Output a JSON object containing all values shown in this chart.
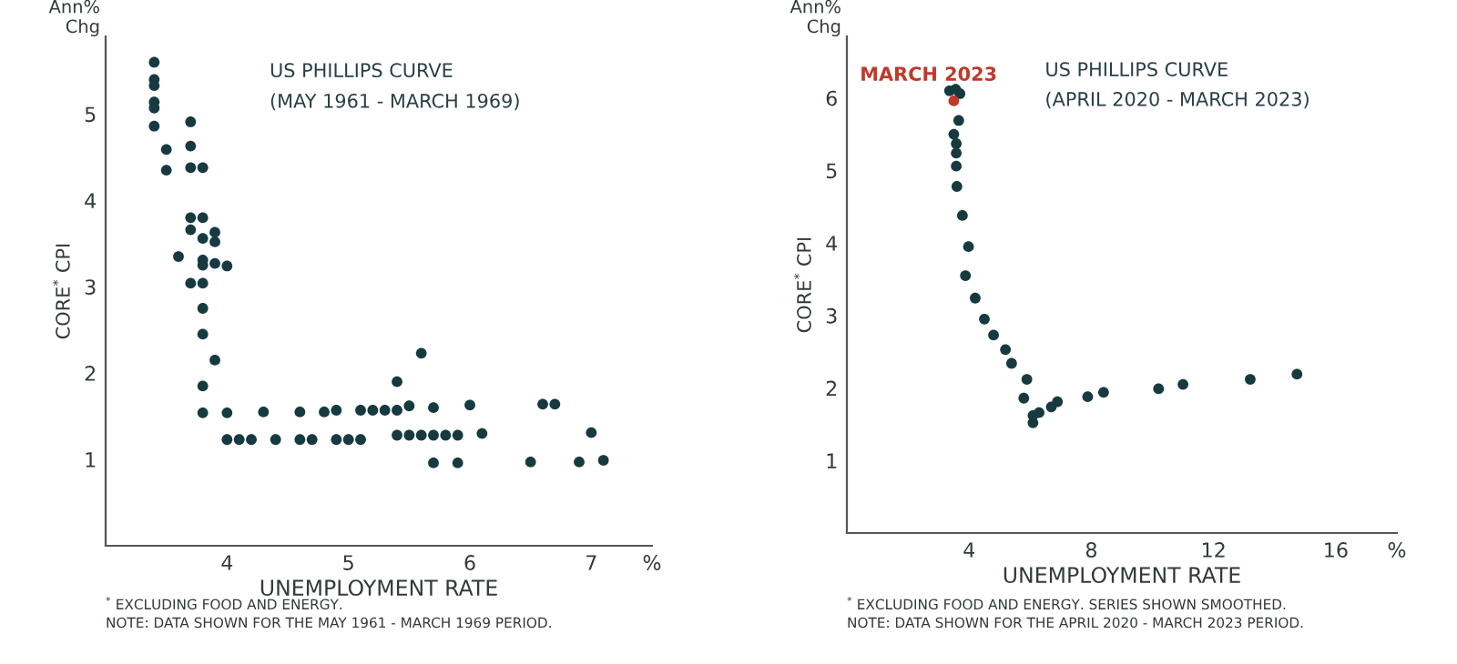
{
  "chart_data": [
    {
      "type": "scatter",
      "title": "US PHILLIPS CURVE",
      "subtitle": "(MAY 1961 - MARCH 1969)",
      "xlabel": "UNEMPLOYMENT RATE",
      "ylabel": "CORE$^{*}$ CPI",
      "xlim": [
        3,
        7.5
      ],
      "ylim": [
        0,
        5.9
      ],
      "xticks": [
        4,
        5,
        6,
        7,
        {
          "value": 7.5,
          "label": "%"
        }
      ],
      "yticks": [
        1,
        2,
        3,
        4,
        5
      ],
      "marker": "circle",
      "grid": false,
      "legend": false,
      "annotations": [
        "Ann%\nChg",
        "$^{*}$ EXCLUDING FOOD AND ENERGY.",
        "NOTE: DATA SHOWN FOR THE MAY 1961 - MARCH 1969 PERIOD."
      ],
      "series": [
        {
          "color": "#163a40",
          "x": [
            3.4,
            3.4,
            3.4,
            3.4,
            3.4,
            3.4,
            3.5,
            3.5,
            3.7,
            3.7,
            3.7,
            3.7,
            3.7,
            3.7,
            3.8,
            3.8,
            3.8,
            3.8,
            3.8,
            3.8,
            3.8,
            3.8,
            3.8,
            3.8,
            3.9,
            3.9,
            3.9,
            3.9,
            3.6,
            4.0,
            4.0,
            4.0,
            4.3,
            4.6,
            4.8,
            4.9,
            5.1,
            5.2,
            5.3,
            5.4,
            5.5,
            5.7,
            6.0,
            6.6,
            6.7,
            4.1,
            4.2,
            4.4,
            4.6,
            4.7,
            4.9,
            5.0,
            5.1,
            5.4,
            5.5,
            5.6,
            5.7,
            5.8,
            5.9,
            6.1,
            5.4,
            5.6,
            5.7,
            5.9,
            6.5,
            6.9,
            7.1,
            7.0
          ],
          "values": [
            5.6,
            5.4,
            5.33,
            5.14,
            5.07,
            4.86,
            4.59,
            4.35,
            4.91,
            4.63,
            4.38,
            3.8,
            3.66,
            3.04,
            4.38,
            3.8,
            3.56,
            3.31,
            3.25,
            3.04,
            2.75,
            2.45,
            1.85,
            1.54,
            3.63,
            3.52,
            3.27,
            2.15,
            3.35,
            3.24,
            1.54,
            1.23,
            1.55,
            1.55,
            1.55,
            1.57,
            1.57,
            1.57,
            1.57,
            1.57,
            1.62,
            1.6,
            1.63,
            1.64,
            1.64,
            1.23,
            1.23,
            1.23,
            1.23,
            1.23,
            1.23,
            1.23,
            1.23,
            1.28,
            1.28,
            1.28,
            1.28,
            1.28,
            1.28,
            1.3,
            1.9,
            2.23,
            0.96,
            0.96,
            0.97,
            0.97,
            0.99,
            1.31
          ]
        }
      ]
    },
    {
      "type": "scatter",
      "title": "US PHILLIPS CURVE",
      "subtitle": "(APRIL 2020 - MARCH 2023)",
      "xlabel": "UNEMPLOYMENT RATE",
      "ylabel": "CORE$^{*}$ CPI",
      "xlim": [
        0,
        18
      ],
      "ylim": [
        0,
        6.85
      ],
      "xticks": [
        4,
        8,
        12,
        16,
        {
          "value": 18,
          "label": "%"
        }
      ],
      "yticks": [
        1,
        2,
        3,
        4,
        5,
        6
      ],
      "marker": "circle",
      "grid": false,
      "legend": false,
      "annotations": [
        "Ann%\nChg",
        "$^{*}$ EXCLUDING FOOD AND ENERGY. SERIES SHOWN SMOOTHED.",
        "NOTE: DATA SHOWN FOR THE APRIL 2020 - MARCH 2023 PERIOD.",
        {
          "text": "MARCH 2023",
          "x": 3.5,
          "y": 5.96
        }
      ],
      "series": [
        {
          "color": "#163a40",
          "x": [
            3.36,
            3.56,
            3.7,
            3.66,
            3.5,
            3.58,
            3.58,
            3.58,
            3.6,
            3.78,
            3.98,
            3.88,
            4.2,
            4.5,
            4.8,
            5.19,
            5.39,
            5.89,
            5.79,
            6.09,
            6.09,
            6.29,
            6.69,
            6.89,
            7.88,
            8.4,
            10.2,
            11.0,
            13.2,
            14.73
          ],
          "values": [
            6.1,
            6.12,
            6.06,
            5.69,
            5.5,
            5.37,
            5.24,
            5.06,
            4.78,
            4.38,
            3.95,
            3.55,
            3.24,
            2.95,
            2.73,
            2.53,
            2.34,
            2.12,
            1.86,
            1.62,
            1.52,
            1.66,
            1.74,
            1.81,
            1.88,
            1.94,
            1.99,
            2.05,
            2.12,
            2.19
          ]
        },
        {
          "color": "#c0392b",
          "x": [
            3.5
          ],
          "values": [
            5.96
          ]
        }
      ]
    }
  ]
}
